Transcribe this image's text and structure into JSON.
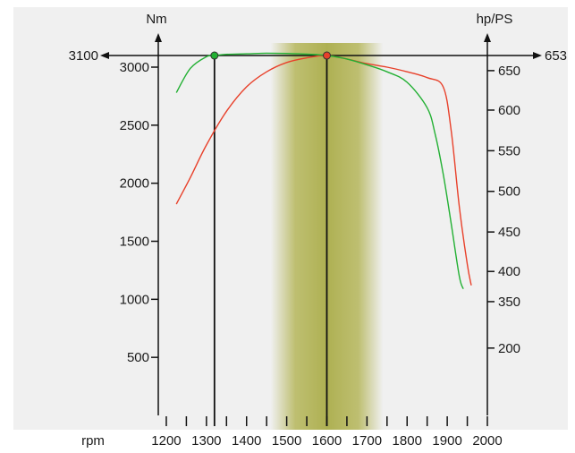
{
  "colors": {
    "background": "#ffffff",
    "plot_background": "#f0f0f0",
    "torque_line": "#e8402a",
    "power_line": "#22b033",
    "band": "#b5b65a",
    "axis": "#111111"
  },
  "chart_data": {
    "type": "line",
    "title": "",
    "xlabel": "rpm",
    "ylabel_left": "Nm",
    "ylabel_right": "hp/PS",
    "x_ticks": [
      1200,
      1300,
      1400,
      1500,
      1600,
      1700,
      1800,
      1900,
      2000
    ],
    "xlim": [
      1180,
      2000
    ],
    "left_axis": {
      "ticks": [
        500,
        1000,
        1500,
        2000,
        2500,
        3000
      ],
      "ylim": [
        0,
        3200
      ]
    },
    "right_axis": {
      "ticks": [
        200,
        350,
        400,
        450,
        500,
        550,
        600,
        650
      ],
      "tick_values": [
        {
          "label": 200,
          "y_equiv_nm": 580
        },
        {
          "label": 350,
          "y_equiv_nm": 980
        },
        {
          "label": 400,
          "y_equiv_nm": 1240
        },
        {
          "label": 450,
          "y_equiv_nm": 1580
        },
        {
          "label": 500,
          "y_equiv_nm": 1930
        },
        {
          "label": 550,
          "y_equiv_nm": 2280
        },
        {
          "label": 600,
          "y_equiv_nm": 2630
        },
        {
          "label": 650,
          "y_equiv_nm": 2970
        }
      ]
    },
    "grid": false,
    "band": {
      "x_start": 1460,
      "x_end": 1740
    },
    "series": [
      {
        "key": "torque",
        "unit": "Nm",
        "color": "#e8402a",
        "x": [
          1225,
          1260,
          1300,
          1350,
          1400,
          1450,
          1500,
          1550,
          1600,
          1650,
          1700,
          1750,
          1800,
          1850,
          1890,
          1910,
          1930,
          1950,
          1960
        ],
        "y": [
          1820,
          2050,
          2330,
          2620,
          2830,
          2960,
          3040,
          3080,
          3100,
          3070,
          3030,
          3000,
          2960,
          2910,
          2830,
          2450,
          1800,
          1300,
          1120
        ]
      },
      {
        "key": "power",
        "unit": "hp/PS",
        "color": "#22b033",
        "x": [
          1225,
          1260,
          1300,
          1320,
          1350,
          1400,
          1450,
          1500,
          1550,
          1600,
          1650,
          1700,
          1750,
          1800,
          1850,
          1870,
          1890,
          1910,
          1930,
          1940
        ],
        "y": [
          2780,
          2990,
          3090,
          3100,
          3110,
          3115,
          3120,
          3118,
          3112,
          3100,
          3070,
          3020,
          2960,
          2870,
          2650,
          2420,
          2080,
          1650,
          1200,
          1090
        ]
      }
    ],
    "markers": [
      {
        "series": "power",
        "x": 1320,
        "y": 3100,
        "color": "#22b033"
      },
      {
        "series": "torque",
        "x": 1600,
        "y": 3100,
        "color": "#e8402a"
      }
    ],
    "reference": {
      "left_label": "3100",
      "right_label": "653",
      "y": 3100
    }
  }
}
